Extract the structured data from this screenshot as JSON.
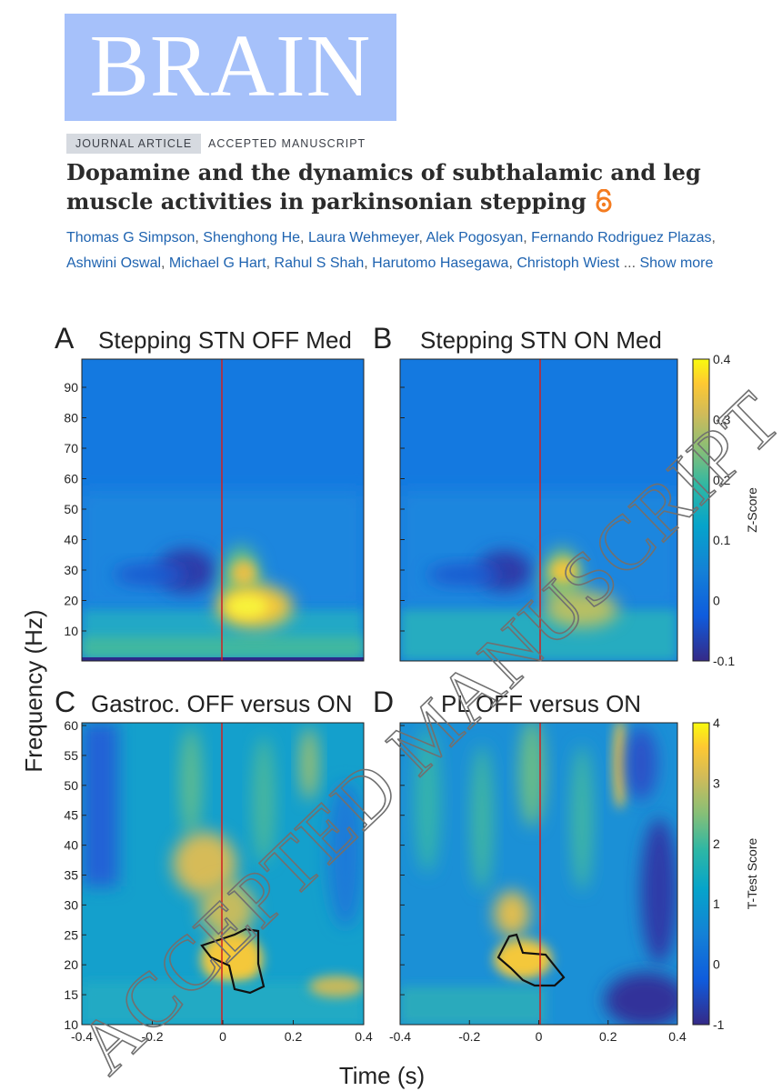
{
  "journal": {
    "logo": "BRAIN"
  },
  "article": {
    "type_badge": "JOURNAL ARTICLE",
    "status": "ACCEPTED MANUSCRIPT",
    "title": "Dopamine and the dynamics of subthalamic and leg muscle activities in parkinsonian stepping",
    "open_access_icon": "open-access-icon",
    "authors": [
      "Thomas G Simpson",
      "Shenghong He",
      "Laura Wehmeyer",
      "Alek Pogosyan",
      "Fernando Rodriguez Plazas",
      "Ashwini Oswal",
      "Michael G Hart",
      "Rahul S Shah",
      "Harutomo Hasegawa",
      "Christoph Wiest"
    ],
    "show_more": "Show more",
    "ellipsis": "...",
    "separator": ","
  },
  "figure": {
    "watermark": "ACCEPTED MANUSCRIPT",
    "y_label": "Frequency (Hz)",
    "x_label": "Time (s)",
    "x_ticks": [
      "-0.4",
      "-0.2",
      "0",
      "0.2",
      "0.4"
    ],
    "panels": [
      {
        "letter": "A",
        "title": "Stepping STN OFF Med",
        "y_ticks": [
          "90",
          "80",
          "70",
          "60",
          "50",
          "40",
          "30",
          "20",
          "10"
        ]
      },
      {
        "letter": "B",
        "title": "Stepping STN ON Med"
      },
      {
        "letter": "C",
        "title": "Gastroc. OFF versus ON",
        "y_ticks": [
          "60",
          "55",
          "50",
          "45",
          "40",
          "35",
          "30",
          "25",
          "20",
          "15",
          "10"
        ]
      },
      {
        "letter": "D",
        "title": "PL OFF versus ON"
      }
    ],
    "colorbars": [
      {
        "label": "Z-Score",
        "ticks": [
          "0.4",
          "0.3",
          "0.2",
          "0.1",
          "0",
          "-0.1"
        ]
      },
      {
        "label": "T-Test Score",
        "ticks": [
          "4",
          "3",
          "2",
          "1",
          "0",
          "-1"
        ]
      }
    ]
  }
}
